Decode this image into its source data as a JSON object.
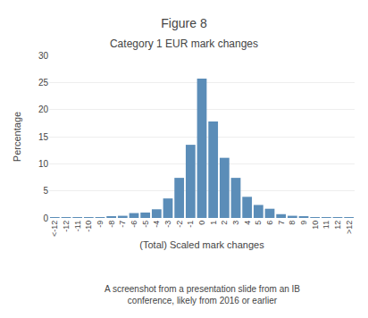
{
  "chart_data": {
    "type": "bar",
    "title": "Figure 8",
    "subtitle": "Category 1 EUR mark changes",
    "xlabel": "(Total) Scaled mark changes",
    "ylabel": "Percentage",
    "categories": [
      "<-12",
      "-12",
      "-11",
      "-10",
      "-9",
      "-8",
      "-7",
      "-6",
      "-5",
      "-4",
      "-3",
      "-2",
      "-1",
      "0",
      "1",
      "2",
      "3",
      "4",
      "5",
      "6",
      "7",
      "8",
      "9",
      "10",
      "11",
      "12",
      ">12"
    ],
    "values": [
      0.1,
      0.1,
      0.1,
      0.1,
      0.1,
      0.2,
      0.4,
      0.9,
      1.0,
      1.6,
      3.6,
      7.4,
      13.5,
      25.7,
      17.8,
      11.1,
      7.4,
      3.9,
      2.4,
      1.7,
      0.7,
      0.4,
      0.2,
      0.15,
      0.1,
      0.15,
      0.15
    ],
    "color": "#5b8db8",
    "ylim": [
      0,
      30
    ],
    "yticks": [
      0,
      5,
      10,
      15,
      20,
      25,
      30
    ],
    "grid": true,
    "annotations": [
      "A screenshot from a presentation slide from an IB\nconference, likely from 2016 or earlier"
    ]
  }
}
